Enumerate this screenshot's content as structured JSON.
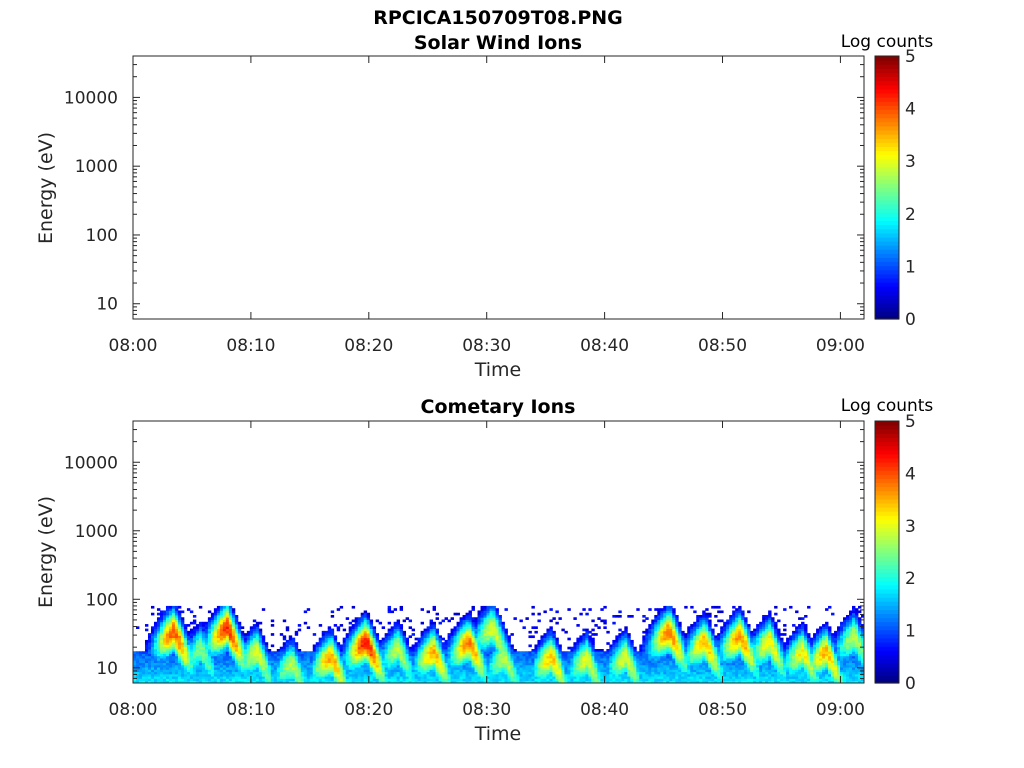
{
  "figure_title": "RPCICA150709T08.PNG",
  "chart_data": [
    {
      "type": "heatmap",
      "title": "Solar Wind Ions",
      "xlabel": "Time",
      "ylabel": "Energy (eV)",
      "xticks": [
        "08:00",
        "08:10",
        "08:20",
        "08:30",
        "08:40",
        "08:50",
        "09:00"
      ],
      "xlim_minutes": [
        0,
        62
      ],
      "yscale": "log",
      "yticks": [
        "10",
        "100",
        "1000",
        "10000"
      ],
      "ylim": [
        6,
        40000
      ],
      "colorbar": {
        "label": "Log counts",
        "ticks": [
          "0",
          "1",
          "2",
          "3",
          "4",
          "5"
        ],
        "range": [
          0,
          5
        ],
        "colormap": "jet"
      },
      "data_description": "empty (no counts)",
      "grid": false
    },
    {
      "type": "heatmap",
      "title": "Cometary Ions",
      "xlabel": "Time",
      "ylabel": "Energy (eV)",
      "xticks": [
        "08:00",
        "08:10",
        "08:20",
        "08:30",
        "08:40",
        "08:50",
        "09:00"
      ],
      "xlim_minutes": [
        0,
        62
      ],
      "yscale": "log",
      "yticks": [
        "10",
        "100",
        "1000",
        "10000"
      ],
      "ylim": [
        6,
        40000
      ],
      "colorbar": {
        "label": "Log counts",
        "ticks": [
          "0",
          "1",
          "2",
          "3",
          "4",
          "5"
        ],
        "range": [
          0,
          5
        ],
        "colormap": "jet"
      },
      "grid": false,
      "max_energy_eV": 80,
      "peaks": [
        {
          "t": 3.5,
          "e": 35,
          "v": 4.0
        },
        {
          "t": 5.8,
          "e": 20,
          "v": 2.5
        },
        {
          "t": 8.0,
          "e": 40,
          "v": 4.2
        },
        {
          "t": 10.5,
          "e": 18,
          "v": 3.0
        },
        {
          "t": 13.5,
          "e": 12,
          "v": 2.8
        },
        {
          "t": 16.8,
          "e": 15,
          "v": 3.6
        },
        {
          "t": 19.8,
          "e": 25,
          "v": 4.3
        },
        {
          "t": 22.5,
          "e": 20,
          "v": 2.8
        },
        {
          "t": 25.5,
          "e": 18,
          "v": 3.5
        },
        {
          "t": 28.5,
          "e": 25,
          "v": 3.8
        },
        {
          "t": 30.5,
          "e": 40,
          "v": 3.0
        },
        {
          "t": 31.5,
          "e": 15,
          "v": 2.8
        },
        {
          "t": 35.5,
          "e": 15,
          "v": 3.4
        },
        {
          "t": 38.5,
          "e": 14,
          "v": 3.0
        },
        {
          "t": 41.8,
          "e": 15,
          "v": 3.0
        },
        {
          "t": 45.5,
          "e": 35,
          "v": 3.8
        },
        {
          "t": 48.5,
          "e": 25,
          "v": 3.5
        },
        {
          "t": 51.5,
          "e": 30,
          "v": 3.7
        },
        {
          "t": 54.0,
          "e": 25,
          "v": 3.2
        },
        {
          "t": 56.8,
          "e": 18,
          "v": 3.2
        },
        {
          "t": 58.8,
          "e": 18,
          "v": 3.5
        },
        {
          "t": 61.2,
          "e": 30,
          "v": 2.8
        }
      ]
    }
  ]
}
